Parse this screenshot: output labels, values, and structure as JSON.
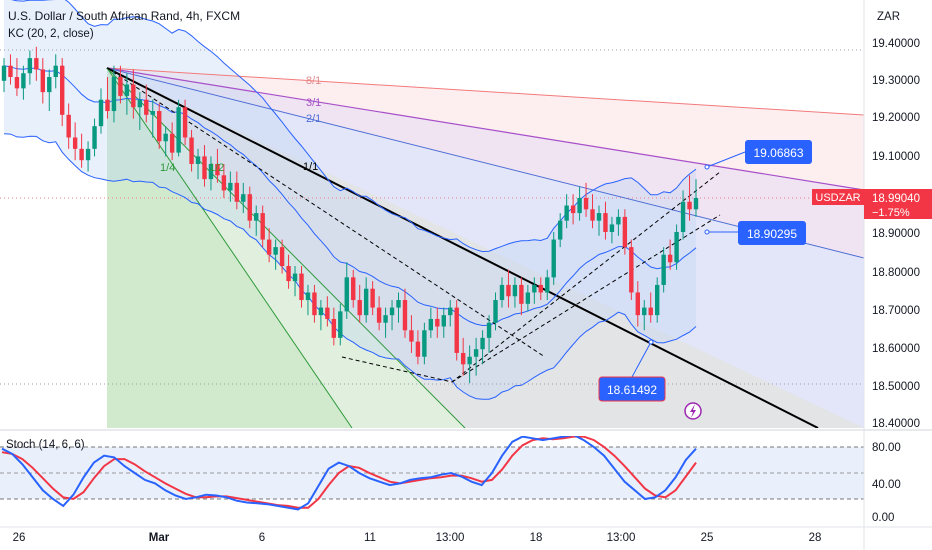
{
  "header": {
    "title": "U.S. Dollar / South African Rand, 4h, FXCM",
    "indicator": "KC (20, 2, close)"
  },
  "price_axis": {
    "currency": "ZAR",
    "ticks": [
      "19.40000",
      "19.30000",
      "19.20000",
      "19.10000",
      "18.90000",
      "18.80000",
      "18.70000",
      "18.60000",
      "18.50000",
      "18.40000"
    ],
    "current_symbol": "USDZAR",
    "current_price": "18.99040",
    "current_change": "−1.75%",
    "current_color": "#f23645"
  },
  "time_axis": {
    "ticks": [
      "26",
      "Mar",
      "6",
      "11",
      "13:00",
      "18",
      "13:00",
      "25",
      "28"
    ]
  },
  "fan": {
    "labels": [
      "8/1",
      "3/1",
      "2/1",
      "1/1",
      "1/4",
      "1/2"
    ]
  },
  "callouts": [
    {
      "name": "callout-upper",
      "value": "19.06863"
    },
    {
      "name": "callout-middle",
      "value": "18.90295"
    },
    {
      "name": "callout-lower",
      "value": "18.61492"
    }
  ],
  "stoch": {
    "label": "Stoch (14, 6, 6)",
    "ticks": [
      "80.00",
      "40.00",
      "0.00"
    ],
    "k_color": "#2962ff",
    "d_color": "#f23645"
  },
  "chart_data": {
    "type": "candlestick",
    "symbol": "USDZAR",
    "timeframe": "4h",
    "ylim": [
      18.4,
      19.45
    ],
    "candles": [
      [
        19.3,
        19.36,
        19.27,
        19.34
      ],
      [
        19.34,
        19.37,
        19.29,
        19.31
      ],
      [
        19.31,
        19.36,
        19.26,
        19.28
      ],
      [
        19.28,
        19.34,
        19.25,
        19.32
      ],
      [
        19.32,
        19.38,
        19.29,
        19.36
      ],
      [
        19.36,
        19.39,
        19.3,
        19.33
      ],
      [
        19.33,
        19.36,
        19.24,
        19.27
      ],
      [
        19.27,
        19.33,
        19.22,
        19.31
      ],
      [
        19.31,
        19.37,
        19.28,
        19.34
      ],
      [
        19.34,
        19.36,
        19.18,
        19.21
      ],
      [
        19.21,
        19.24,
        19.12,
        19.15
      ],
      [
        19.15,
        19.19,
        19.09,
        19.12
      ],
      [
        19.12,
        19.16,
        19.07,
        19.09
      ],
      [
        19.09,
        19.14,
        19.06,
        19.12
      ],
      [
        19.12,
        19.2,
        19.1,
        19.18
      ],
      [
        19.18,
        19.28,
        19.16,
        19.25
      ],
      [
        19.25,
        19.31,
        19.2,
        19.22
      ],
      [
        19.22,
        19.34,
        19.19,
        19.31
      ],
      [
        19.31,
        19.34,
        19.24,
        19.26
      ],
      [
        19.26,
        19.32,
        19.21,
        19.29
      ],
      [
        19.29,
        19.33,
        19.2,
        19.23
      ],
      [
        19.23,
        19.27,
        19.17,
        19.25
      ],
      [
        19.25,
        19.29,
        19.19,
        19.21
      ],
      [
        19.21,
        19.25,
        19.15,
        19.22
      ],
      [
        19.22,
        19.24,
        19.12,
        19.14
      ],
      [
        19.14,
        19.18,
        19.1,
        19.16
      ],
      [
        19.16,
        19.19,
        19.09,
        19.11
      ],
      [
        19.11,
        19.25,
        19.1,
        19.23
      ],
      [
        19.23,
        19.25,
        19.13,
        19.15
      ],
      [
        19.15,
        19.17,
        19.06,
        19.08
      ],
      [
        19.08,
        19.12,
        19.04,
        19.1
      ],
      [
        19.1,
        19.13,
        19.02,
        19.04
      ],
      [
        19.04,
        19.1,
        19.01,
        19.08
      ],
      [
        19.08,
        19.12,
        19.03,
        19.05
      ],
      [
        19.05,
        19.08,
        18.99,
        19.01
      ],
      [
        19.01,
        19.06,
        18.98,
        19.03
      ],
      [
        19.03,
        19.06,
        18.96,
        18.98
      ],
      [
        18.98,
        19.03,
        18.95,
        19.0
      ],
      [
        19.0,
        19.02,
        18.91,
        18.93
      ],
      [
        18.93,
        18.97,
        18.89,
        18.95
      ],
      [
        18.95,
        18.97,
        18.86,
        18.88
      ],
      [
        18.88,
        18.91,
        18.82,
        18.84
      ],
      [
        18.84,
        18.88,
        18.8,
        18.86
      ],
      [
        18.86,
        18.88,
        18.79,
        18.81
      ],
      [
        18.81,
        18.84,
        18.75,
        18.77
      ],
      [
        18.77,
        18.81,
        18.73,
        18.79
      ],
      [
        18.79,
        18.81,
        18.7,
        18.72
      ],
      [
        18.72,
        18.76,
        18.68,
        18.74
      ],
      [
        18.74,
        18.76,
        18.66,
        18.68
      ],
      [
        18.68,
        18.72,
        18.64,
        18.7
      ],
      [
        18.7,
        18.73,
        18.65,
        18.67
      ],
      [
        18.67,
        18.7,
        18.6,
        18.62
      ],
      [
        18.62,
        18.71,
        18.6,
        18.69
      ],
      [
        18.69,
        18.82,
        18.67,
        18.78
      ],
      [
        18.78,
        18.8,
        18.7,
        18.72
      ],
      [
        18.72,
        18.76,
        18.66,
        18.68
      ],
      [
        18.68,
        18.78,
        18.66,
        18.75
      ],
      [
        18.75,
        18.77,
        18.68,
        18.7
      ],
      [
        18.7,
        18.73,
        18.64,
        18.66
      ],
      [
        18.66,
        18.7,
        18.62,
        18.68
      ],
      [
        18.68,
        18.72,
        18.64,
        18.7
      ],
      [
        18.7,
        18.74,
        18.66,
        18.72
      ],
      [
        18.72,
        18.75,
        18.62,
        18.64
      ],
      [
        18.64,
        18.68,
        18.58,
        18.61
      ],
      [
        18.61,
        18.64,
        18.55,
        18.57
      ],
      [
        18.57,
        18.66,
        18.55,
        18.64
      ],
      [
        18.64,
        18.7,
        18.62,
        18.67
      ],
      [
        18.67,
        18.7,
        18.62,
        18.65
      ],
      [
        18.65,
        18.7,
        18.62,
        18.68
      ],
      [
        18.68,
        18.72,
        18.65,
        18.7
      ],
      [
        18.7,
        18.72,
        18.56,
        18.58
      ],
      [
        18.58,
        18.62,
        18.52,
        18.55
      ],
      [
        18.55,
        18.6,
        18.5,
        18.57
      ],
      [
        18.57,
        18.62,
        18.52,
        18.59
      ],
      [
        18.59,
        18.64,
        18.55,
        18.62
      ],
      [
        18.62,
        18.68,
        18.58,
        18.66
      ],
      [
        18.66,
        18.74,
        18.64,
        18.72
      ],
      [
        18.72,
        18.78,
        18.7,
        18.76
      ],
      [
        18.76,
        18.8,
        18.7,
        18.73
      ],
      [
        18.73,
        18.78,
        18.7,
        18.76
      ],
      [
        18.76,
        18.78,
        18.68,
        18.71
      ],
      [
        18.71,
        18.76,
        18.69,
        18.74
      ],
      [
        18.74,
        18.78,
        18.71,
        18.76
      ],
      [
        18.76,
        18.78,
        18.72,
        18.74
      ],
      [
        18.74,
        18.8,
        18.72,
        18.78
      ],
      [
        18.78,
        18.9,
        18.76,
        18.88
      ],
      [
        18.88,
        18.95,
        18.86,
        18.93
      ],
      [
        18.93,
        19.0,
        18.91,
        18.97
      ],
      [
        18.97,
        19.0,
        18.92,
        18.95
      ],
      [
        18.95,
        19.02,
        18.93,
        18.99
      ],
      [
        18.99,
        19.03,
        18.94,
        18.96
      ],
      [
        18.96,
        19.0,
        18.91,
        18.93
      ],
      [
        18.93,
        18.97,
        18.89,
        18.95
      ],
      [
        18.95,
        18.98,
        18.88,
        18.9
      ],
      [
        18.9,
        18.94,
        18.87,
        18.92
      ],
      [
        18.92,
        18.96,
        18.89,
        18.94
      ],
      [
        18.94,
        18.96,
        18.84,
        18.86
      ],
      [
        18.86,
        18.88,
        18.72,
        18.74
      ],
      [
        18.74,
        18.77,
        18.65,
        18.68
      ],
      [
        18.68,
        18.72,
        18.64,
        18.7
      ],
      [
        18.7,
        18.74,
        18.66,
        18.68
      ],
      [
        18.68,
        18.78,
        18.66,
        18.76
      ],
      [
        18.76,
        18.86,
        18.74,
        18.84
      ],
      [
        18.84,
        18.88,
        18.8,
        18.82
      ],
      [
        18.82,
        18.92,
        18.8,
        18.9
      ],
      [
        18.9,
        19.01,
        18.88,
        18.98
      ],
      [
        18.98,
        19.05,
        18.93,
        18.96
      ],
      [
        18.96,
        19.04,
        18.94,
        18.99
      ]
    ],
    "stochastic": {
      "ylim": [
        0,
        100
      ],
      "levels": [
        80,
        50,
        20
      ],
      "k": [
        78,
        72,
        60,
        45,
        30,
        20,
        12,
        25,
        45,
        62,
        70,
        68,
        58,
        50,
        42,
        38,
        30,
        24,
        20,
        22,
        25,
        24,
        22,
        18,
        16,
        15,
        14,
        12,
        10,
        8,
        15,
        35,
        55,
        62,
        58,
        50,
        44,
        40,
        36,
        38,
        42,
        44,
        45,
        48,
        50,
        46,
        40,
        36,
        50,
        70,
        86,
        92,
        90,
        88,
        90,
        92,
        94,
        88,
        80,
        70,
        55,
        40,
        30,
        20,
        22,
        30,
        45,
        65,
        78
      ],
      "d": [
        74,
        72,
        66,
        56,
        44,
        32,
        22,
        20,
        28,
        44,
        58,
        66,
        66,
        60,
        52,
        45,
        38,
        32,
        26,
        22,
        22,
        23,
        23,
        21,
        19,
        17,
        15,
        13,
        12,
        10,
        10,
        20,
        36,
        50,
        58,
        56,
        50,
        45,
        40,
        38,
        40,
        42,
        44,
        45,
        47,
        47,
        44,
        40,
        42,
        54,
        70,
        82,
        88,
        90,
        89,
        90,
        92,
        92,
        88,
        80,
        70,
        58,
        45,
        32,
        24,
        22,
        30,
        46,
        62
      ]
    }
  }
}
